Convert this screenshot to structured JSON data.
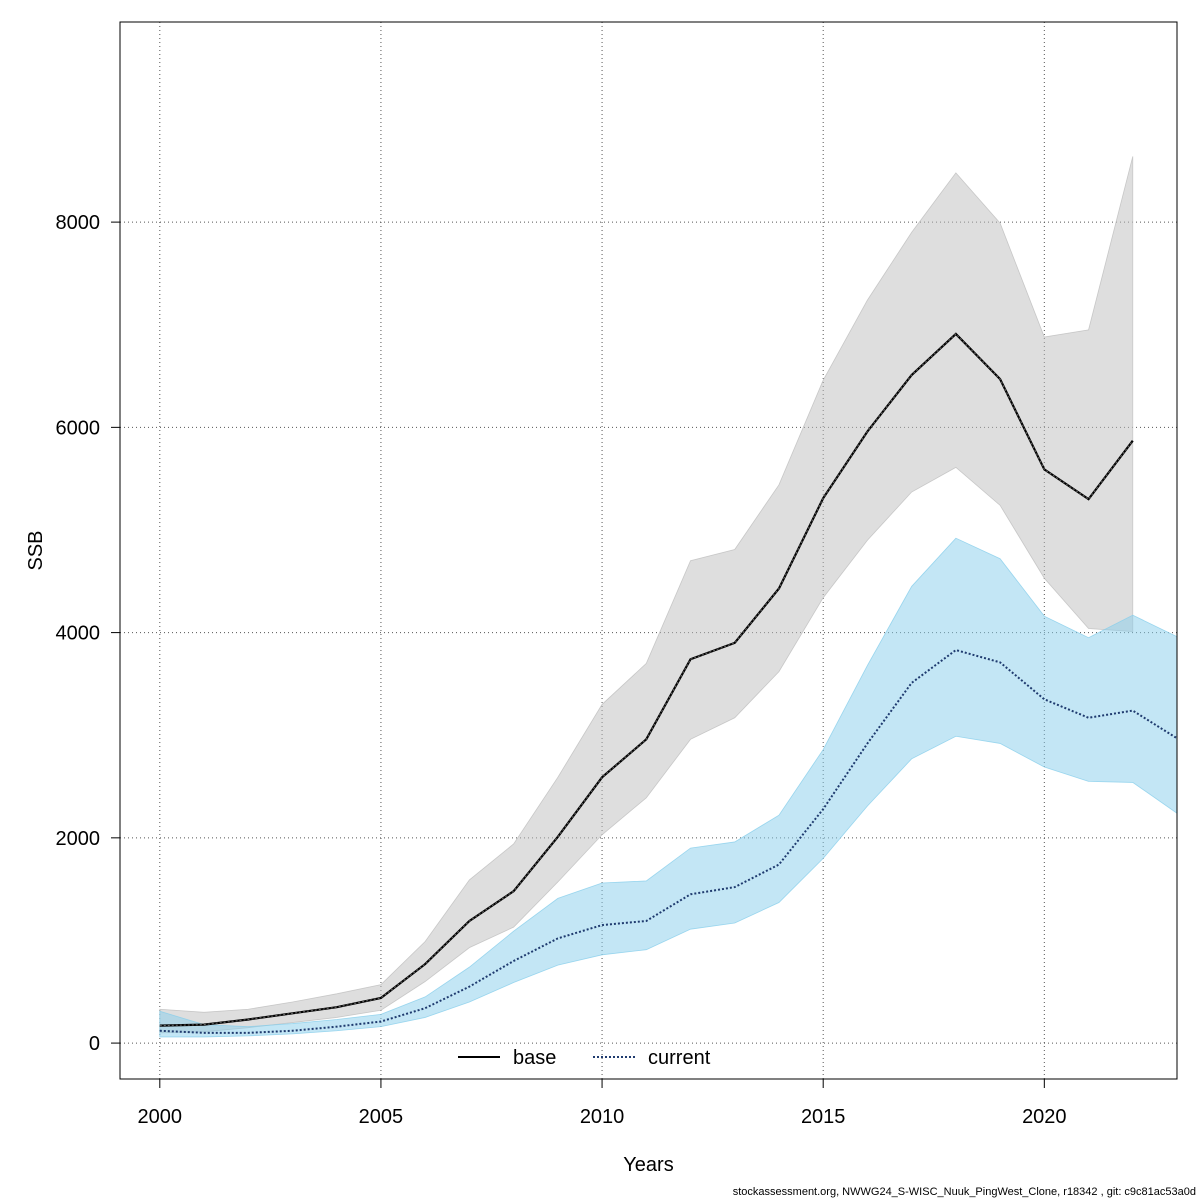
{
  "chart_data": {
    "type": "line",
    "xlabel": "Years",
    "ylabel": "SSB",
    "xlim": [
      1999.1,
      2023
    ],
    "ylim": [
      -350,
      9950
    ],
    "x_ticks": [
      2000,
      2005,
      2010,
      2015,
      2020
    ],
    "y_ticks": [
      0,
      2000,
      4000,
      6000,
      8000
    ],
    "grid": true,
    "legend_position": "bottom",
    "series": [
      {
        "name": "base",
        "color": "#000000",
        "band_color": "#bebebe",
        "line_style": "solid",
        "x": [
          2000,
          2001,
          2002,
          2003,
          2004,
          2005,
          2006,
          2007,
          2008,
          2009,
          2010,
          2011,
          2012,
          2013,
          2014,
          2015,
          2016,
          2017,
          2018,
          2019,
          2020,
          2021,
          2022
        ],
        "values": [
          170,
          180,
          230,
          290,
          350,
          440,
          770,
          1190,
          1480,
          2010,
          2590,
          2960,
          3740,
          3900,
          4430,
          5310,
          5960,
          6510,
          6910,
          6470,
          5590,
          5300,
          5870
        ],
        "lower": [
          100,
          110,
          150,
          200,
          250,
          320,
          600,
          930,
          1130,
          1570,
          2030,
          2390,
          2960,
          3170,
          3620,
          4340,
          4900,
          5370,
          5610,
          5240,
          4530,
          4040,
          4010
        ],
        "upper": [
          330,
          300,
          330,
          400,
          480,
          570,
          990,
          1590,
          1940,
          2590,
          3300,
          3700,
          4700,
          4810,
          5440,
          6460,
          7240,
          7900,
          8480,
          7990,
          6880,
          6950,
          8640
        ]
      },
      {
        "name": "current",
        "color": "#1f3b6f",
        "band_color": "#87ceeb",
        "line_style": "dotted",
        "x": [
          2000,
          2001,
          2002,
          2003,
          2004,
          2005,
          2006,
          2007,
          2008,
          2009,
          2010,
          2011,
          2012,
          2013,
          2014,
          2015,
          2016,
          2017,
          2018,
          2019,
          2020,
          2021,
          2022,
          2023
        ],
        "values": [
          120,
          100,
          100,
          120,
          160,
          210,
          340,
          550,
          800,
          1020,
          1150,
          1190,
          1450,
          1520,
          1740,
          2280,
          2920,
          3510,
          3830,
          3710,
          3350,
          3170,
          3240,
          2970
        ],
        "lower": [
          60,
          60,
          70,
          90,
          120,
          160,
          250,
          400,
          590,
          760,
          860,
          910,
          1110,
          1170,
          1370,
          1800,
          2310,
          2770,
          2990,
          2920,
          2690,
          2550,
          2540,
          2240
        ],
        "upper": [
          310,
          180,
          160,
          190,
          230,
          280,
          450,
          740,
          1090,
          1410,
          1560,
          1580,
          1900,
          1960,
          2220,
          2860,
          3680,
          4450,
          4920,
          4720,
          4160,
          3950,
          4170,
          3960
        ]
      }
    ]
  },
  "footer": "stockassessment.org, NWWG24_S-WISC_Nuuk_PingWest_Clone, r18342 , git: c9c81ac53a0d"
}
